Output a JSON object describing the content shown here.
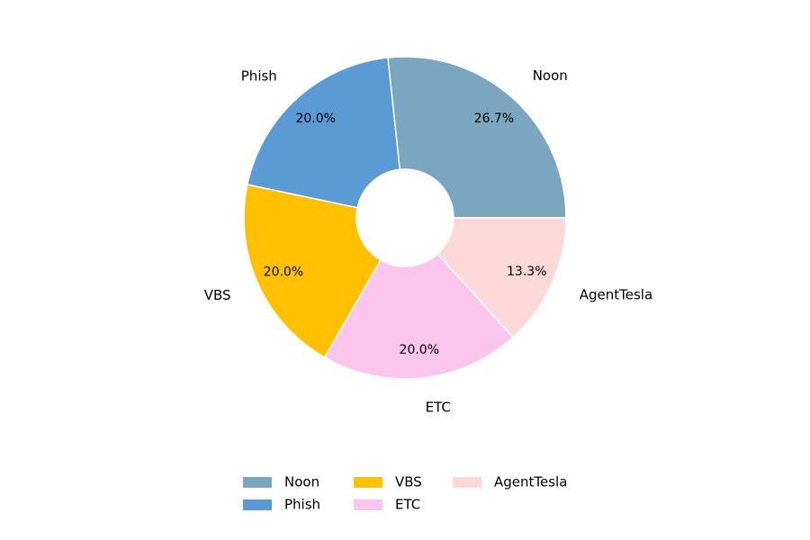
{
  "chart_data": {
    "type": "pie",
    "categories": [
      "Noon",
      "Phish",
      "VBS",
      "ETC",
      "AgentTesla"
    ],
    "values": [
      26.7,
      20.0,
      20.0,
      20.0,
      13.3
    ],
    "value_labels": [
      "26.7%",
      "20.0%",
      "20.0%",
      "20.0%",
      "13.3%"
    ],
    "colors": [
      "#7aa6c0",
      "#5b9bd5",
      "#ffc000",
      "#fcc5ed",
      "#fdd8d8"
    ],
    "donut": true,
    "legend": "lower center"
  }
}
